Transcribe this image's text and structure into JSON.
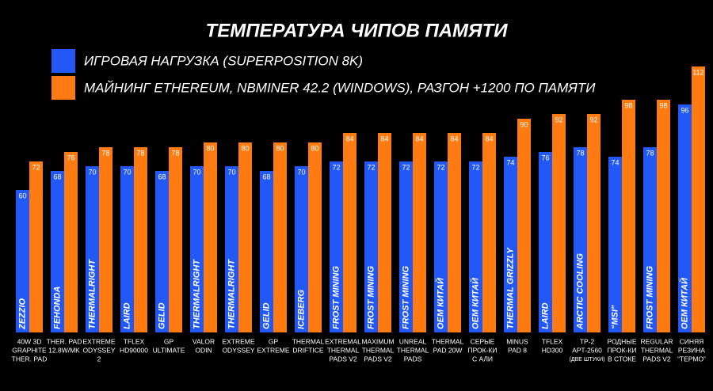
{
  "chart_data": {
    "type": "bar",
    "title": "ТЕМПЕРАТУРА ЧИПОВ ПАМЯТИ",
    "categories": [
      [
        "40W 3D",
        "GRAPHITE",
        "THER. PAD"
      ],
      [
        "THER. PAD",
        "12.8W/MK"
      ],
      [
        "EXTREME",
        "ODYSSEY",
        "2"
      ],
      [
        "TFLEX",
        "HD90000"
      ],
      [
        "GP",
        "ULTIMATE"
      ],
      [
        "VALOR",
        "ODIN"
      ],
      [
        "EXTREME",
        "ODYSSEY"
      ],
      [
        "GP",
        "EXTREME"
      ],
      [
        "THERMAL",
        "DRIFTICE"
      ],
      [
        "EXTREMAL",
        "THERMAL",
        "PADS V2"
      ],
      [
        "MAXIMUM",
        "THERMAL",
        "PADS V2"
      ],
      [
        "UNREAL",
        "THERMAL",
        "PADS"
      ],
      [
        "THERMAL",
        "PAD 20W"
      ],
      [
        "СЕРЫЕ",
        "ПРОК-КИ",
        "С АЛИ"
      ],
      [
        "MINUS",
        "PAD 8"
      ],
      [
        "TFLEX",
        "HD300"
      ],
      [
        "TP-2",
        "APT-2560",
        "(ДВЕ ШТУКИ)"
      ],
      [
        "РОДНЫЕ",
        "ПРОК-КИ",
        "В СТОКЕ"
      ],
      [
        "REGULAR",
        "THERMAL",
        "PADS V2"
      ],
      [
        "СИНЯЯ",
        "РЕЗИНА",
        "“ТЕРМО”"
      ]
    ],
    "brands": [
      "ZEZZIO",
      "FEHONDA",
      "THERMALRIGHT",
      "LAIRD",
      "GELID",
      "THERMALRIGHT",
      "THERMALRIGHT",
      "GELID",
      "ICEBERG",
      "FROST MINING",
      "FROST MINING",
      "FROST MINING",
      "OEM КИТАЙ",
      "OEM КИТАЙ",
      "THERMAL GRIZZLY",
      "LAIRD",
      "ARCTIC COOLING",
      "“MSI”",
      "FROST MINING",
      "OEM КИТАЙ"
    ],
    "series": [
      {
        "name": "ИГРОВАЯ НАГРУЗКА (SUPERPOSITION 8K)",
        "color": "#2258f5",
        "values": [
          60,
          68,
          70,
          70,
          68,
          70,
          70,
          68,
          70,
          72,
          72,
          72,
          72,
          72,
          74,
          76,
          78,
          74,
          78,
          96
        ]
      },
      {
        "name": "МАЙНИНГ ETHEREUM, NBMINER 42.2 (WINDOWS), РАЗГОН +1200 ПО ПАМЯТИ",
        "color": "#ff7b12",
        "values": [
          72,
          76,
          78,
          78,
          78,
          80,
          80,
          80,
          80,
          84,
          84,
          84,
          84,
          84,
          90,
          92,
          92,
          98,
          98,
          112
        ]
      }
    ]
  }
}
